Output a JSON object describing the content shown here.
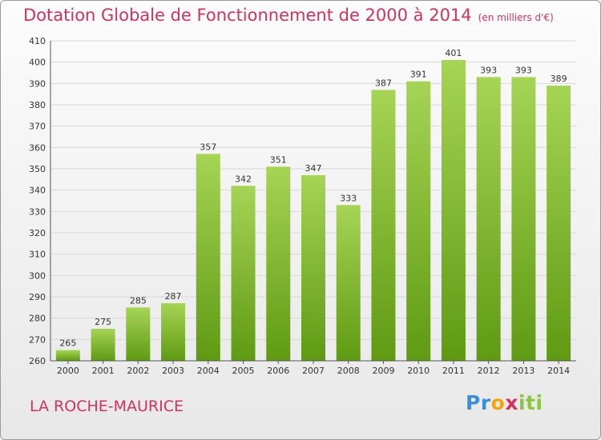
{
  "header": {
    "title": "Dotation Globale de Fonctionnement de 2000 à 2014",
    "subtitle": "(en milliers d'€)"
  },
  "footer": {
    "commune": "LA ROCHE-MAURICE",
    "logo": {
      "part1": "Pr",
      "part2": "o",
      "part3": "x",
      "part4": "iti"
    }
  },
  "colors": {
    "title": "#d2325e",
    "bar_light": "#a6d455",
    "bar_dark": "#5f9a12",
    "grid": "#d8d8d8"
  },
  "chart_data": {
    "type": "bar",
    "title": "Dotation Globale de Fonctionnement de 2000 à 2014",
    "subtitle": "(en milliers d'€)",
    "xlabel": "",
    "ylabel": "",
    "categories": [
      "2000",
      "2001",
      "2002",
      "2003",
      "2004",
      "2005",
      "2006",
      "2007",
      "2008",
      "2009",
      "2010",
      "2011",
      "2012",
      "2013",
      "2014"
    ],
    "values": [
      265,
      275,
      285,
      287,
      357,
      342,
      351,
      347,
      333,
      387,
      391,
      401,
      393,
      393,
      389
    ],
    "ylim": [
      260,
      410
    ],
    "yticks": [
      260,
      270,
      280,
      290,
      300,
      310,
      320,
      330,
      340,
      350,
      360,
      370,
      380,
      390,
      400,
      410
    ],
    "grid": true,
    "legend": "none"
  }
}
